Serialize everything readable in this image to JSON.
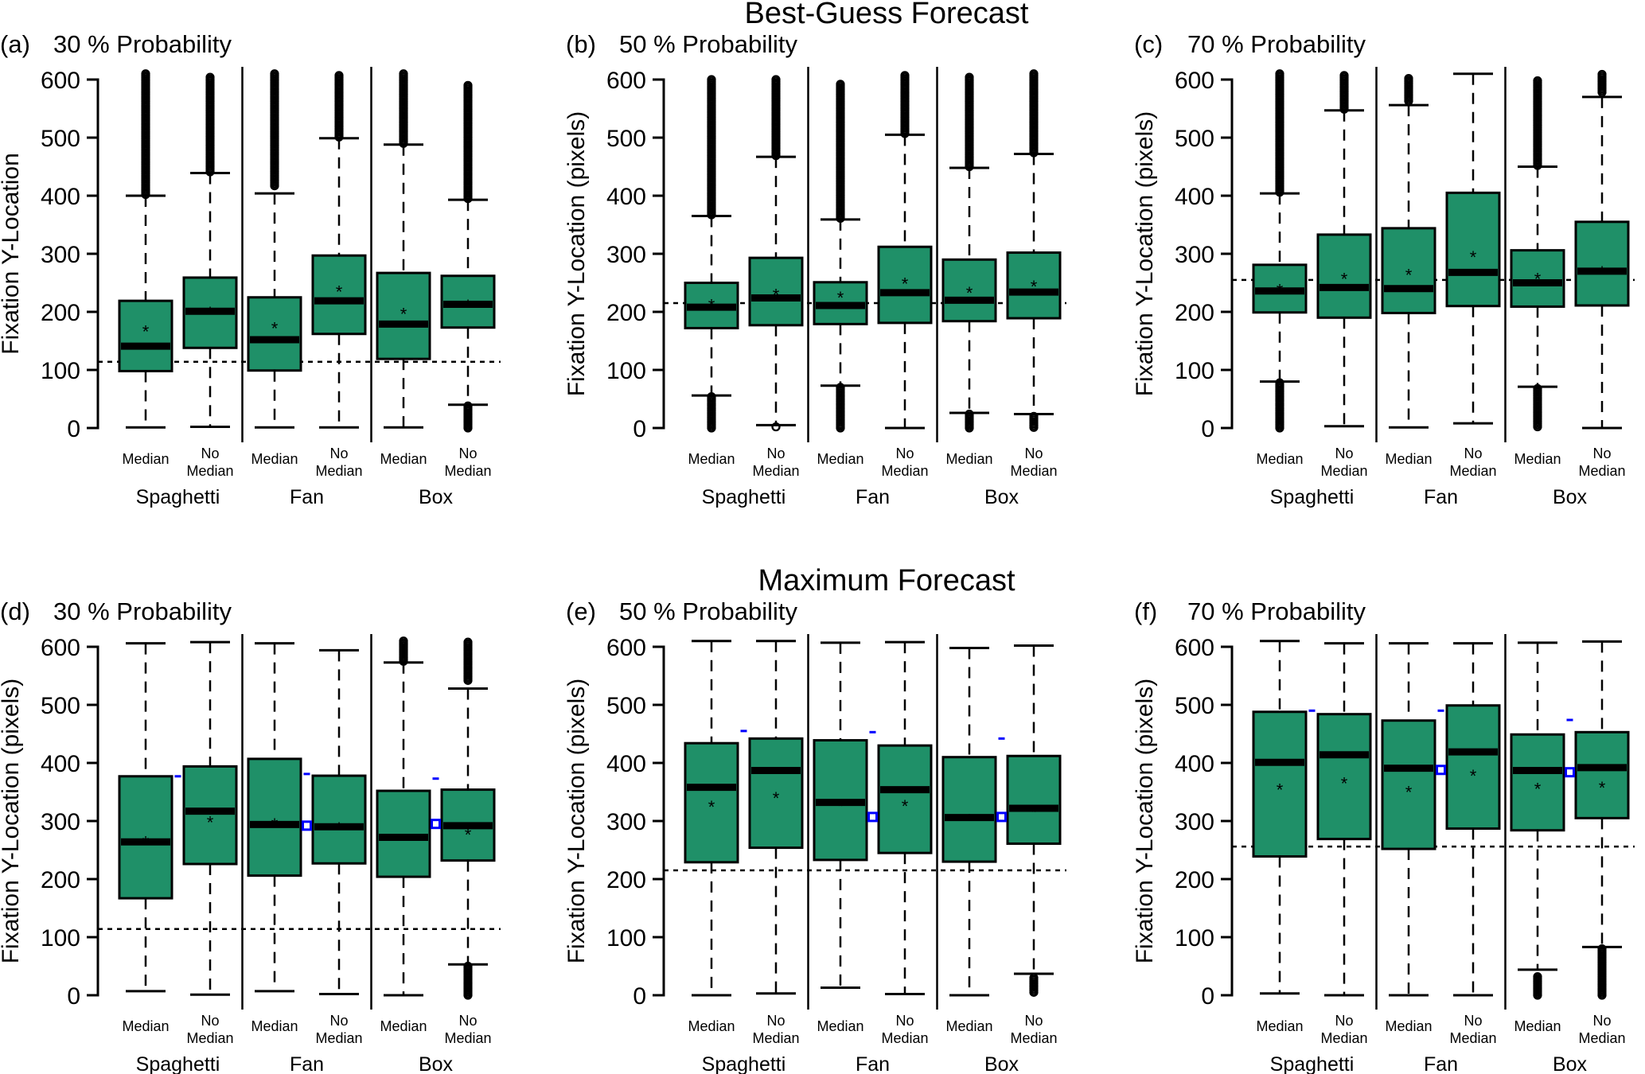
{
  "figure": {
    "titles": {
      "top": "Best-Guess Forecast",
      "bottom": "Maximum Forecast"
    },
    "colors": {
      "box_fill": "#1f9068",
      "marker_blue": "#0000ff",
      "ink": "#000000"
    }
  },
  "chart_data": [
    {
      "type": "boxplot",
      "panel": "(a)",
      "title": "30 % Probability",
      "row": "Best-Guess Forecast",
      "ylabel": "Fixation Y-Location",
      "ylim": [
        0,
        600
      ],
      "yticks": [
        "0",
        "100",
        "200",
        "300",
        "400",
        "500",
        "600"
      ],
      "reference_line": 114,
      "groups": [
        "Spaghetti",
        "Fan",
        "Box"
      ],
      "categories": [
        "Median",
        "No\nMedian",
        "Median",
        "No\nMedian",
        "Median",
        "No\nMedian"
      ],
      "boxes": [
        {
          "group": "Spaghetti",
          "label": "Median",
          "lower_whisker": 1,
          "q1": 98,
          "median": 141,
          "q3": 219,
          "upper_whisker": 400,
          "mean": 175,
          "outliers_low": null,
          "outliers_high": [
            402,
            610
          ]
        },
        {
          "group": "Spaghetti",
          "label": "No Median",
          "lower_whisker": 2,
          "q1": 138,
          "median": 201,
          "q3": 259,
          "upper_whisker": 439,
          "mean": 207,
          "outliers_low": null,
          "outliers_high": [
            441,
            604
          ]
        },
        {
          "group": "Fan",
          "label": "Median",
          "lower_whisker": 1,
          "q1": 99,
          "median": 152,
          "q3": 225,
          "upper_whisker": 404,
          "mean": 180,
          "outliers_low": null,
          "outliers_high": [
            417,
            610
          ]
        },
        {
          "group": "Fan",
          "label": "No Median",
          "lower_whisker": 1,
          "q1": 162,
          "median": 219,
          "q3": 297,
          "upper_whisker": 499,
          "mean": 243,
          "outliers_low": null,
          "outliers_high": [
            501,
            607
          ]
        },
        {
          "group": "Box",
          "label": "Median",
          "lower_whisker": 1,
          "q1": 119,
          "median": 179,
          "q3": 267,
          "upper_whisker": 488,
          "mean": 205,
          "outliers_low": null,
          "outliers_high": [
            490,
            610
          ]
        },
        {
          "group": "Box",
          "label": "No Median",
          "lower_whisker": 40,
          "q1": 173,
          "median": 213,
          "q3": 262,
          "upper_whisker": 393,
          "mean": 219,
          "outliers_low": [
            0,
            38
          ],
          "outliers_high": [
            395,
            590
          ]
        }
      ],
      "blue_markers": []
    },
    {
      "type": "boxplot",
      "panel": "(b)",
      "title": "50 % Probability",
      "row": "Best-Guess Forecast",
      "ylabel": "Fixation Y-Location (pixels)",
      "ylim": [
        0,
        600
      ],
      "yticks": [
        "0",
        "100",
        "200",
        "300",
        "400",
        "500",
        "600"
      ],
      "reference_line": 215,
      "groups": [
        "Spaghetti",
        "Fan",
        "Box"
      ],
      "categories": [
        "Median",
        "No\nMedian",
        "Median",
        "No\nMedian",
        "Median",
        "No\nMedian"
      ],
      "boxes": [
        {
          "group": "Spaghetti",
          "label": "Median",
          "lower_whisker": 56,
          "q1": 172,
          "median": 208,
          "q3": 250,
          "upper_whisker": 365,
          "mean": 220,
          "outliers_low": [
            0,
            54
          ],
          "outliers_high": [
            367,
            600
          ]
        },
        {
          "group": "Spaghetti",
          "label": "No Median",
          "lower_whisker": 5,
          "q1": 177,
          "median": 224,
          "q3": 293,
          "upper_whisker": 467,
          "mean": 238,
          "outliers_low": [
            2,
            2
          ],
          "outliers_high": [
            469,
            600
          ]
        },
        {
          "group": "Fan",
          "label": "Median",
          "lower_whisker": 73,
          "q1": 179,
          "median": 211,
          "q3": 251,
          "upper_whisker": 359,
          "mean": 233,
          "outliers_low": [
            0,
            70
          ],
          "outliers_high": [
            361,
            592
          ]
        },
        {
          "group": "Fan",
          "label": "No Median",
          "lower_whisker": 0,
          "q1": 181,
          "median": 233,
          "q3": 312,
          "upper_whisker": 505,
          "mean": 257,
          "outliers_low": null,
          "outliers_high": [
            507,
            607
          ]
        },
        {
          "group": "Box",
          "label": "Median",
          "lower_whisker": 26,
          "q1": 184,
          "median": 220,
          "q3": 290,
          "upper_whisker": 448,
          "mean": 241,
          "outliers_low": [
            0,
            24
          ],
          "outliers_high": [
            450,
            604
          ]
        },
        {
          "group": "Box",
          "label": "No Median",
          "lower_whisker": 24,
          "q1": 189,
          "median": 234,
          "q3": 302,
          "upper_whisker": 472,
          "mean": 252,
          "outliers_low": [
            1,
            20
          ],
          "outliers_high": [
            474,
            610
          ]
        }
      ],
      "blue_markers": []
    },
    {
      "type": "boxplot",
      "panel": "(c)",
      "title": "70 % Probability",
      "row": "Best-Guess Forecast",
      "ylabel": "Fixation Y-Location (pixels)",
      "ylim": [
        0,
        600
      ],
      "yticks": [
        "0",
        "100",
        "200",
        "300",
        "400",
        "500",
        "600"
      ],
      "reference_line": 255,
      "groups": [
        "Spaghetti",
        "Fan",
        "Box"
      ],
      "categories": [
        "Median",
        "No\nMedian",
        "Median",
        "No\nMedian",
        "Median",
        "No\nMedian"
      ],
      "boxes": [
        {
          "group": "Spaghetti",
          "label": "Median",
          "lower_whisker": 80,
          "q1": 199,
          "median": 236,
          "q3": 281,
          "upper_whisker": 404,
          "mean": 246,
          "outliers_low": [
            0,
            78
          ],
          "outliers_high": [
            406,
            610
          ]
        },
        {
          "group": "Spaghetti",
          "label": "No Median",
          "lower_whisker": 3,
          "q1": 190,
          "median": 242,
          "q3": 333,
          "upper_whisker": 547,
          "mean": 265,
          "outliers_low": null,
          "outliers_high": [
            549,
            607
          ]
        },
        {
          "group": "Fan",
          "label": "Median",
          "lower_whisker": 1,
          "q1": 198,
          "median": 240,
          "q3": 344,
          "upper_whisker": 556,
          "mean": 272,
          "outliers_low": null,
          "outliers_high": [
            563,
            602
          ]
        },
        {
          "group": "Fan",
          "label": "No Median",
          "lower_whisker": 8,
          "q1": 210,
          "median": 268,
          "q3": 405,
          "upper_whisker": 610,
          "mean": 303,
          "outliers_low": null,
          "outliers_high": null
        },
        {
          "group": "Box",
          "label": "Median",
          "lower_whisker": 71,
          "q1": 209,
          "median": 250,
          "q3": 306,
          "upper_whisker": 450,
          "mean": 265,
          "outliers_low": [
            2,
            68
          ],
          "outliers_high": [
            452,
            598
          ]
        },
        {
          "group": "Box",
          "label": "No Median",
          "lower_whisker": 0,
          "q1": 211,
          "median": 270,
          "q3": 355,
          "upper_whisker": 570,
          "mean": 277,
          "outliers_low": null,
          "outliers_high": [
            578,
            609
          ]
        }
      ],
      "blue_markers": []
    },
    {
      "type": "boxplot",
      "panel": "(d)",
      "title": "30 % Probability",
      "row": "Maximum Forecast",
      "ylabel": "Fixation Y-Location (pixels)",
      "ylim": [
        0,
        600
      ],
      "yticks": [
        "0",
        "100",
        "200",
        "300",
        "400",
        "500",
        "600"
      ],
      "reference_line": 114,
      "groups": [
        "Spaghetti",
        "Fan",
        "Box"
      ],
      "categories": [
        "Median",
        "No\nMedian",
        "Median",
        "No\nMedian",
        "Median",
        "No\nMedian"
      ],
      "boxes": [
        {
          "group": "Spaghetti",
          "label": "Median",
          "lower_whisker": 7,
          "q1": 167,
          "median": 264,
          "q3": 377,
          "upper_whisker": 606,
          "mean": 272,
          "outliers_low": null,
          "outliers_high": null
        },
        {
          "group": "Spaghetti",
          "label": "No Median",
          "lower_whisker": 1,
          "q1": 226,
          "median": 317,
          "q3": 394,
          "upper_whisker": 608,
          "mean": 306,
          "outliers_low": null,
          "outliers_high": null
        },
        {
          "group": "Fan",
          "label": "Median",
          "lower_whisker": 7,
          "q1": 206,
          "median": 294,
          "q3": 407,
          "upper_whisker": 606,
          "mean": 303,
          "outliers_low": null,
          "outliers_high": null
        },
        {
          "group": "Fan",
          "label": "No Median",
          "lower_whisker": 2,
          "q1": 227,
          "median": 290,
          "q3": 378,
          "upper_whisker": 594,
          "mean": 296,
          "outliers_low": null,
          "outliers_high": null
        },
        {
          "group": "Box",
          "label": "Median",
          "lower_whisker": 0,
          "q1": 204,
          "median": 272,
          "q3": 352,
          "upper_whisker": 573,
          "mean": 275,
          "outliers_low": null,
          "outliers_high": [
            575,
            610
          ]
        },
        {
          "group": "Box",
          "label": "No Median",
          "lower_whisker": 53,
          "q1": 232,
          "median": 292,
          "q3": 354,
          "upper_whisker": 528,
          "mean": 285,
          "outliers_low": [
            0,
            50
          ],
          "outliers_high": [
            542,
            608
          ]
        }
      ],
      "blue_markers": [
        {
          "between": "Spaghetti",
          "dash": 377,
          "square": null
        },
        {
          "between": "Fan",
          "dash": 381,
          "square": 292
        },
        {
          "between": "Box",
          "dash": 373,
          "square": 295
        }
      ]
    },
    {
      "type": "boxplot",
      "panel": "(e)",
      "title": "50 % Probability",
      "row": "Maximum Forecast",
      "ylabel": "Fixation Y-Location (pixels)",
      "ylim": [
        0,
        600
      ],
      "yticks": [
        "0",
        "100",
        "200",
        "300",
        "400",
        "500",
        "600"
      ],
      "reference_line": 215,
      "groups": [
        "Spaghetti",
        "Fan",
        "Box"
      ],
      "categories": [
        "Median",
        "No\nMedian",
        "Median",
        "No\nMedian",
        "Median",
        "No\nMedian"
      ],
      "boxes": [
        {
          "group": "Spaghetti",
          "label": "Median",
          "lower_whisker": 0,
          "q1": 229,
          "median": 358,
          "q3": 434,
          "upper_whisker": 610,
          "mean": 333,
          "outliers_low": null,
          "outliers_high": null
        },
        {
          "group": "Spaghetti",
          "label": "No Median",
          "lower_whisker": 3,
          "q1": 254,
          "median": 387,
          "q3": 442,
          "upper_whisker": 610,
          "mean": 348,
          "outliers_low": null,
          "outliers_high": null
        },
        {
          "group": "Fan",
          "label": "Median",
          "lower_whisker": 13,
          "q1": 233,
          "median": 332,
          "q3": 439,
          "upper_whisker": 607,
          "mean": 334,
          "outliers_low": null,
          "outliers_high": null
        },
        {
          "group": "Fan",
          "label": "No Median",
          "lower_whisker": 2,
          "q1": 245,
          "median": 354,
          "q3": 430,
          "upper_whisker": 608,
          "mean": 334,
          "outliers_low": null,
          "outliers_high": null
        },
        {
          "group": "Box",
          "label": "Median",
          "lower_whisker": 0,
          "q1": 230,
          "median": 306,
          "q3": 410,
          "upper_whisker": 598,
          "mean": 310,
          "outliers_low": null,
          "outliers_high": null
        },
        {
          "group": "Box",
          "label": "No Median",
          "lower_whisker": 37,
          "q1": 261,
          "median": 322,
          "q3": 412,
          "upper_whisker": 602,
          "mean": 324,
          "outliers_low": [
            5,
            30
          ],
          "outliers_high": null
        }
      ],
      "blue_markers": [
        {
          "between": "Spaghetti",
          "dash": 455,
          "square": null
        },
        {
          "between": "Fan",
          "dash": 453,
          "square": 307
        },
        {
          "between": "Box",
          "dash": 442,
          "square": 307
        }
      ]
    },
    {
      "type": "boxplot",
      "panel": "(f)",
      "title": "70 % Probability",
      "row": "Maximum Forecast",
      "ylabel": "Fixation Y-Location (pixels)",
      "ylim": [
        0,
        600
      ],
      "yticks": [
        "0",
        "100",
        "200",
        "300",
        "400",
        "500",
        "600"
      ],
      "reference_line": 256,
      "groups": [
        "Spaghetti",
        "Fan",
        "Box"
      ],
      "categories": [
        "Median",
        "No\nMedian",
        "Median",
        "No\nMedian",
        "Median",
        "No\nMedian"
      ],
      "boxes": [
        {
          "group": "Spaghetti",
          "label": "Median",
          "lower_whisker": 3,
          "q1": 239,
          "median": 401,
          "q3": 488,
          "upper_whisker": 610,
          "mean": 362,
          "outliers_low": null,
          "outliers_high": null
        },
        {
          "group": "Spaghetti",
          "label": "No Median",
          "lower_whisker": 0,
          "q1": 269,
          "median": 414,
          "q3": 484,
          "upper_whisker": 606,
          "mean": 373,
          "outliers_low": null,
          "outliers_high": null
        },
        {
          "group": "Fan",
          "label": "Median",
          "lower_whisker": 0,
          "q1": 252,
          "median": 391,
          "q3": 473,
          "upper_whisker": 606,
          "mean": 358,
          "outliers_low": null,
          "outliers_high": null
        },
        {
          "group": "Fan",
          "label": "No Median",
          "lower_whisker": 0,
          "q1": 287,
          "median": 419,
          "q3": 499,
          "upper_whisker": 606,
          "mean": 386,
          "outliers_low": null,
          "outliers_high": null
        },
        {
          "group": "Box",
          "label": "Median",
          "lower_whisker": 44,
          "q1": 284,
          "median": 387,
          "q3": 449,
          "upper_whisker": 607,
          "mean": 364,
          "outliers_low": [
            0,
            32
          ],
          "outliers_high": null
        },
        {
          "group": "Box",
          "label": "No Median",
          "lower_whisker": 83,
          "q1": 305,
          "median": 392,
          "q3": 453,
          "upper_whisker": 609,
          "mean": 366,
          "outliers_low": [
            0,
            80
          ],
          "outliers_high": null
        }
      ],
      "blue_markers": [
        {
          "between": "Spaghetti",
          "dash": 490,
          "square": null
        },
        {
          "between": "Fan",
          "dash": 490,
          "square": 388
        },
        {
          "between": "Box",
          "dash": 474,
          "square": 384
        }
      ]
    }
  ]
}
